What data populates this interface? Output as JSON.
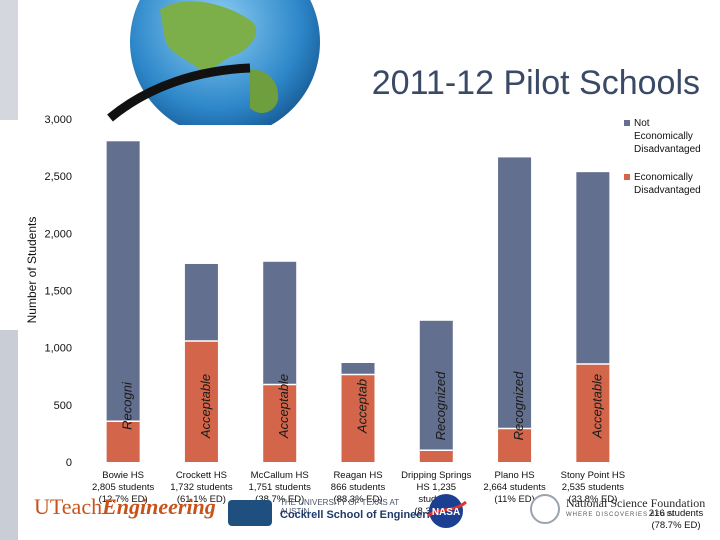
{
  "slide": {
    "title": "2011-12 Pilot Schools",
    "extra_label": "216 students (78.7% ED)"
  },
  "colors": {
    "not_ed": "#636f8e",
    "ed": "#d2654a",
    "title": "#3a4a66"
  },
  "logos": {
    "uteach_prefix": "UTeach",
    "uteach_suffix": "Engineering",
    "cockrell_line1": "THE UNIVERSITY OF TEXAS AT AUSTIN",
    "cockrell_line2": "Cockrell School of Engineering",
    "nasa": "NASA",
    "nsf_name": "National Science Foundation",
    "nsf_sub": "WHERE DISCOVERIES BEGIN"
  },
  "chart_data": {
    "type": "bar",
    "stacked": true,
    "ylabel": "Number of Students",
    "ylim": [
      0,
      3000
    ],
    "yticks": [
      "0",
      "500",
      "1,000",
      "1,500",
      "2,000",
      "2,500",
      "3,000"
    ],
    "ytick_values": [
      0,
      500,
      1000,
      1500,
      2000,
      2500,
      3000
    ],
    "legend_position": "right",
    "categories": [
      {
        "name": "Bowie HS",
        "line2": "2,805 students",
        "line3": "(12.7% ED)"
      },
      {
        "name": "Crockett HS",
        "line2": "1,732 students",
        "line3": "(61.1% ED)"
      },
      {
        "name": "McCallum HS",
        "line2": "1,751 students",
        "line3": "(38.7% ED)"
      },
      {
        "name": "Reagan HS",
        "line2": "866 students",
        "line3": "(88.3% ED)"
      },
      {
        "name": "Dripping Springs",
        "line2": "HS 1,235",
        "line3": "students",
        "line4": "(8.3% ED)"
      },
      {
        "name": "Plano HS",
        "line2": "2,664 students",
        "line3": "(11% ED)"
      },
      {
        "name": "Stony Point HS",
        "line2": "2,535 students",
        "line3": "(33.8% ED)"
      }
    ],
    "series": [
      {
        "name": "Economically Disadvantaged",
        "color": "#d2654a",
        "values": [
          356,
          1058,
          678,
          765,
          103,
          293,
          857
        ]
      },
      {
        "name": "Not Economically Disadvantaged",
        "color": "#636f8e",
        "values": [
          2449,
          674,
          1073,
          101,
          1132,
          2371,
          1678
        ]
      }
    ],
    "bar_labels": [
      "Recogni",
      "Acceptable",
      "Acceptable",
      "Acceptab",
      "Recognized",
      "Recognized",
      "Acceptable"
    ]
  }
}
